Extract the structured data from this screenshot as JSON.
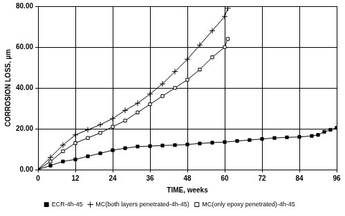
{
  "chart_data": {
    "type": "line",
    "x_label": "TIME, weeks",
    "y_label": "CORROSION LOSS, µm",
    "xlim": [
      0,
      96
    ],
    "xticks": [
      0,
      12,
      24,
      36,
      48,
      60,
      72,
      84,
      96
    ],
    "ylim": [
      0,
      80
    ],
    "yticks": [
      {
        "value": 0,
        "label": "0.00"
      },
      {
        "value": 20,
        "label": "20.00"
      },
      {
        "value": 40,
        "label": "40.00"
      },
      {
        "value": 60,
        "label": "60.00"
      },
      {
        "value": 80,
        "label": "80.00"
      }
    ],
    "grid": true,
    "legend": "bottom",
    "series": [
      {
        "name": "ECR-4h-45",
        "color": "#000000",
        "marker": "square",
        "x": [
          0,
          4,
          8,
          12,
          16,
          20,
          24,
          28,
          32,
          36,
          40,
          44,
          48,
          52,
          56,
          60,
          64,
          68,
          72,
          76,
          80,
          84,
          88,
          90,
          92,
          94,
          96
        ],
        "values": [
          0,
          2,
          4,
          5,
          6.5,
          8,
          9.5,
          10.5,
          11.3,
          11.5,
          11.8,
          12,
          12.3,
          12.8,
          13.2,
          13.5,
          14,
          14.5,
          15,
          15.5,
          15.8,
          16,
          16.5,
          17,
          18.5,
          19.5,
          20.5
        ]
      },
      {
        "name": "MC(both layers penetrated-4h-45)",
        "color": "#000000",
        "marker": "plus",
        "x": [
          0,
          4,
          8,
          12,
          16,
          20,
          24,
          28,
          32,
          36,
          40,
          44,
          48,
          52,
          56,
          60,
          61
        ],
        "values": [
          0,
          6,
          12,
          17,
          19.5,
          22,
          25,
          29,
          32.5,
          37,
          42,
          48,
          54,
          61,
          68,
          75,
          79
        ]
      },
      {
        "name": "MC(only epoxy penetrated)-4h-45",
        "color": "#000000",
        "marker": "square-open",
        "x": [
          0,
          4,
          8,
          12,
          16,
          20,
          24,
          28,
          32,
          36,
          40,
          44,
          48,
          52,
          56,
          60,
          61
        ],
        "values": [
          0,
          4,
          9,
          13,
          15.5,
          18,
          21,
          24,
          28,
          32,
          36,
          40,
          44,
          49,
          55,
          60,
          64
        ]
      }
    ]
  }
}
